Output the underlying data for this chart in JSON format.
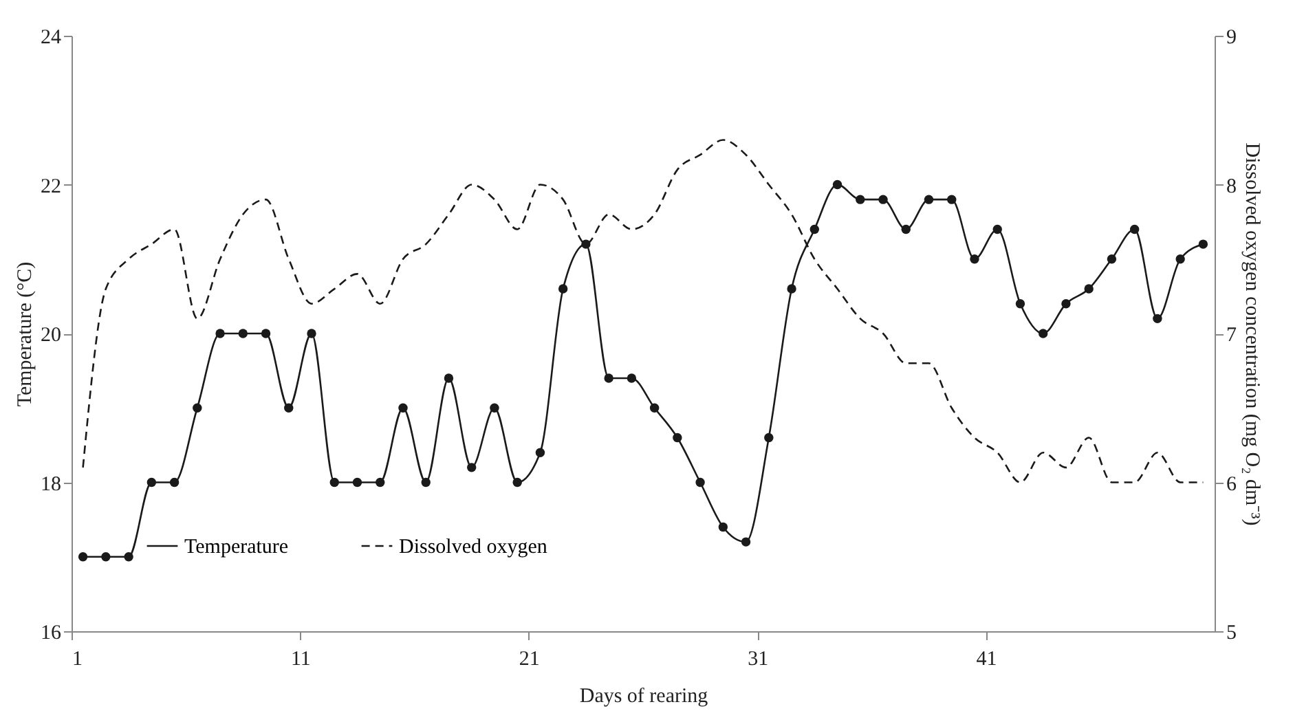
{
  "chart_data": {
    "type": "line",
    "xlabel": "Days of rearing",
    "ylabel": "Temperature (°C)",
    "y2label": "Dissolved oxygen concentration (mg O₂ dm⁻³)",
    "x": [
      1,
      2,
      3,
      4,
      5,
      6,
      7,
      8,
      9,
      10,
      11,
      12,
      13,
      14,
      15,
      16,
      17,
      18,
      19,
      20,
      21,
      22,
      23,
      24,
      25,
      26,
      27,
      28,
      29,
      30,
      31,
      32,
      33,
      34,
      35,
      36,
      37,
      38,
      39,
      40,
      41,
      42,
      43,
      44,
      45,
      46,
      47,
      48,
      49,
      50
    ],
    "series": [
      {
        "name": "Temperature",
        "color": "#1a1a1a",
        "marker": "circle",
        "line_style": "solid",
        "values": [
          17,
          17,
          17,
          18,
          18,
          19,
          20,
          20,
          20,
          19,
          20,
          18,
          18,
          18,
          19,
          18,
          19.4,
          18.2,
          19,
          18,
          18.4,
          20.6,
          21.2,
          19.4,
          19.4,
          19,
          18.6,
          18,
          17.4,
          17.2,
          18.6,
          20.6,
          21.4,
          22,
          21.8,
          21.8,
          21.4,
          21.8,
          21.8,
          21,
          21.4,
          20.4,
          20,
          20.4,
          20.6,
          21,
          21.4,
          20.2,
          21,
          21.2
        ]
      },
      {
        "name": "Dissolved oxygen",
        "color": "#1a1a1a",
        "marker": "none",
        "line_style": "dashed",
        "axis": "y2",
        "values": [
          6.1,
          7.3,
          7.5,
          7.6,
          7.7,
          7.1,
          7.5,
          7.8,
          7.9,
          7.5,
          7.2,
          7.3,
          7.4,
          7.2,
          7.5,
          7.6,
          7.8,
          8,
          7.9,
          7.7,
          8,
          7.9,
          7.6,
          7.8,
          7.7,
          7.8,
          8.1,
          8.2,
          8.3,
          8.2,
          8,
          7.8,
          7.5,
          7.3,
          7.1,
          7,
          6.8,
          6.8,
          6.5,
          6.3,
          6.2,
          6,
          6.2,
          6.1,
          6.3,
          6,
          6,
          6.2,
          6,
          6
        ]
      }
    ],
    "xlim": [
      0.5,
      50.5
    ],
    "xticks": [
      {
        "value": 0.5,
        "label": "1"
      },
      {
        "value": 10.5,
        "label": "11"
      },
      {
        "value": 20.5,
        "label": "21"
      },
      {
        "value": 30.5,
        "label": "31"
      },
      {
        "value": 40.5,
        "label": "41"
      }
    ],
    "ylim": [
      16,
      24
    ],
    "yticks": [
      16,
      18,
      20,
      22,
      24
    ],
    "y2lim": [
      5,
      9
    ],
    "y2ticks": [
      5,
      6,
      7,
      8,
      9
    ],
    "grid": false,
    "legend": "bottom left"
  }
}
